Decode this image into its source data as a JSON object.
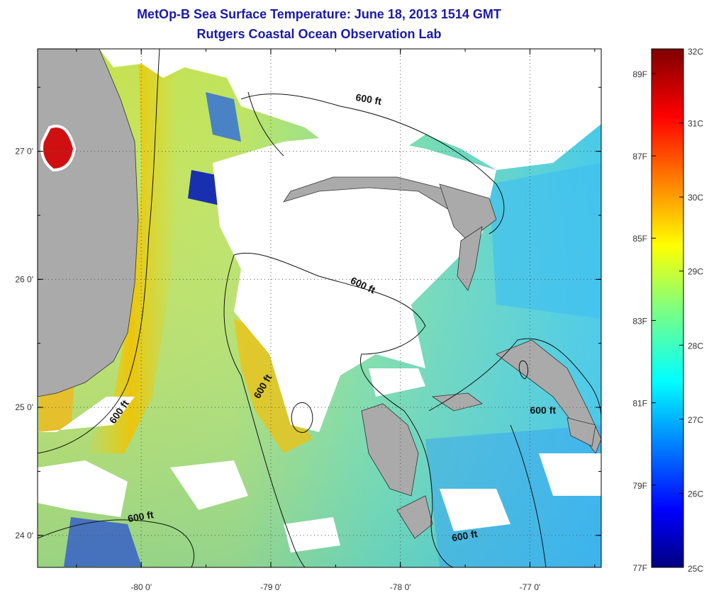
{
  "title": {
    "line1": "MetOp-B Sea Surface Temperature:  June 18, 2013 1514 GMT",
    "line2": "Rutgers Coastal Ocean Observation Lab"
  },
  "map": {
    "lon_range": [
      -80.8,
      -76.45
    ],
    "lat_range": [
      23.75,
      27.8
    ],
    "x_ticks": [
      {
        "value": -80,
        "label": "-80 0'"
      },
      {
        "value": -79,
        "label": "-79 0'"
      },
      {
        "value": -78,
        "label": "-78 0'"
      },
      {
        "value": -77,
        "label": "-77 0'"
      }
    ],
    "y_ticks": [
      {
        "value": 27,
        "label": "27 0'"
      },
      {
        "value": 26,
        "label": "26 0'"
      },
      {
        "value": 25,
        "label": "25 0'"
      },
      {
        "value": 24,
        "label": "24 0'"
      }
    ],
    "grid": "dotted",
    "land_color": "#aaaaaa",
    "cloud_color": "#ffffff",
    "contour_labels": [
      {
        "text": "600 ft",
        "lon": -78.25,
        "lat": 27.38
      },
      {
        "text": "600 ft",
        "lon": -78.3,
        "lat": 25.93
      },
      {
        "text": "600 ft",
        "lon": -79.04,
        "lat": 25.15
      },
      {
        "text": "600 ft",
        "lon": -80.15,
        "lat": 24.95
      },
      {
        "text": "600 ft",
        "lon": -76.9,
        "lat": 24.95
      },
      {
        "text": "600 ft",
        "lon": -80.0,
        "lat": 24.12
      },
      {
        "text": "600 ft",
        "lon": -77.5,
        "lat": 23.97
      }
    ]
  },
  "colorbar": {
    "min_c": 25,
    "max_c": 32,
    "celsius_labels": [
      "32C",
      "31C",
      "30C",
      "29C",
      "28C",
      "27C",
      "26C",
      "25C"
    ],
    "fahrenheit_labels": [
      "89F",
      "87F",
      "85F",
      "83F",
      "81F",
      "79F",
      "77F"
    ],
    "fahrenheit_values": [
      89,
      87,
      85,
      83,
      81,
      79,
      77
    ],
    "colormap": "jet"
  }
}
